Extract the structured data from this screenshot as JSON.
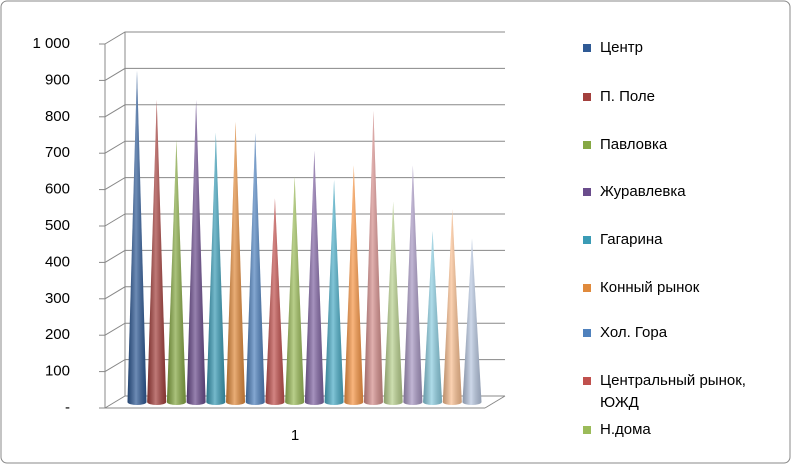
{
  "chart_data": {
    "type": "cone3d",
    "categories": [
      "1"
    ],
    "ylim": [
      0,
      1000
    ],
    "yticks": [
      {
        "value": 0,
        "label": "-"
      },
      100,
      200,
      300,
      400,
      500,
      600,
      700,
      800,
      900,
      {
        "value": 1000,
        "label": "1 000"
      }
    ],
    "grid": true,
    "legend": "right",
    "series": [
      {
        "name": "Центр",
        "color": "#2f5a95",
        "values": [
          910
        ]
      },
      {
        "name": "П. Поле",
        "color": "#a3403d",
        "values": [
          830
        ]
      },
      {
        "name": "Павловка",
        "color": "#86a844",
        "values": [
          720
        ]
      },
      {
        "name": "Журавлевка",
        "color": "#6a4c8c",
        "values": [
          830
        ]
      },
      {
        "name": "Гагарина",
        "color": "#3a9bb5",
        "values": [
          740
        ]
      },
      {
        "name": "Конный рынок",
        "color": "#e08a3c",
        "values": [
          770
        ]
      },
      {
        "name": "Хол. Гора",
        "color": "#4f81bd",
        "values": [
          740
        ]
      },
      {
        "name": "Центральный рынок, ЮЖД",
        "color": "#c0504d",
        "values": [
          560
        ]
      },
      {
        "name": "Н.дома",
        "color": "#9bbb59",
        "values": [
          620
        ]
      },
      {
        "color": "#8064a2",
        "values": [
          690
        ]
      },
      {
        "color": "#4bacc6",
        "values": [
          610
        ]
      },
      {
        "color": "#f79646",
        "values": [
          650
        ]
      },
      {
        "color": "#d48e8c",
        "values": [
          800
        ]
      },
      {
        "color": "#b8d08e",
        "values": [
          550
        ]
      },
      {
        "color": "#a797c2",
        "values": [
          650
        ]
      },
      {
        "color": "#8ccde0",
        "values": [
          470
        ]
      },
      {
        "color": "#f9bf91",
        "values": [
          530
        ]
      },
      {
        "color": "#b8c7e0",
        "values": [
          450
        ]
      }
    ]
  }
}
